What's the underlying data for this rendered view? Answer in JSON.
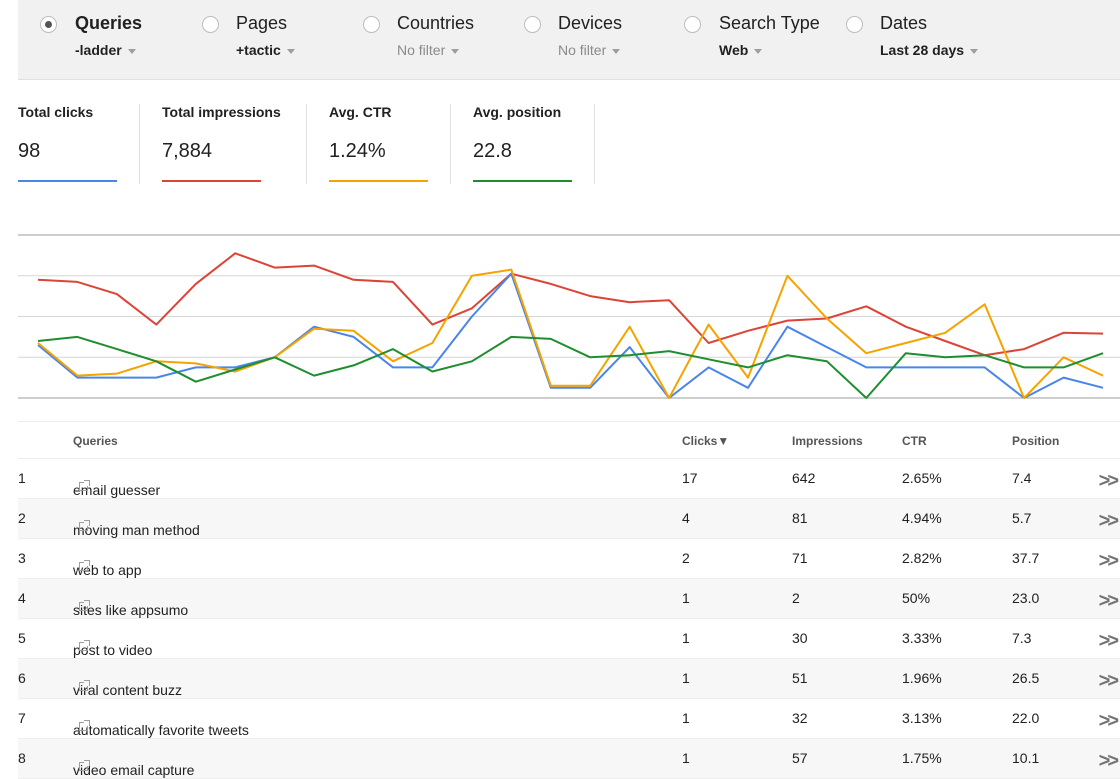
{
  "filters": [
    {
      "label": "Queries",
      "value": "-ladder",
      "selected": true,
      "muted": false
    },
    {
      "label": "Pages",
      "value": "+tactic",
      "selected": false,
      "muted": false
    },
    {
      "label": "Countries",
      "value": "No filter",
      "selected": false,
      "muted": true
    },
    {
      "label": "Devices",
      "value": "No filter",
      "selected": false,
      "muted": true
    },
    {
      "label": "Search Type",
      "value": "Web",
      "selected": false,
      "muted": false
    },
    {
      "label": "Dates",
      "value": "Last 28 days",
      "selected": false,
      "muted": false
    }
  ],
  "metrics": [
    {
      "label": "Total clicks",
      "value": "98",
      "color": "#4a86e8"
    },
    {
      "label": "Total impressions",
      "value": "7,884",
      "color": "#db4437"
    },
    {
      "label": "Avg. CTR",
      "value": "1.24%",
      "color": "#f4a300"
    },
    {
      "label": "Avg. position",
      "value": "22.8",
      "color": "#1e8e2e"
    }
  ],
  "chart_data": {
    "type": "line",
    "grid": true,
    "ylim": [
      0,
      4
    ],
    "x": [
      1,
      2,
      3,
      4,
      5,
      6,
      7,
      8,
      9,
      10,
      11,
      12,
      13,
      14,
      15,
      16,
      17,
      18,
      19,
      20,
      21,
      22,
      23,
      24,
      25,
      26,
      27,
      28
    ],
    "series": [
      {
        "name": "Total impressions",
        "color": "#db4437",
        "values": [
          2.9,
          2.85,
          2.55,
          1.8,
          2.8,
          3.55,
          3.2,
          3.25,
          2.9,
          2.85,
          1.8,
          2.2,
          3.05,
          2.8,
          2.5,
          2.35,
          2.4,
          1.35,
          1.65,
          1.9,
          1.95,
          2.25,
          1.75,
          1.4,
          1.05,
          1.2,
          1.6,
          1.58
        ]
      },
      {
        "name": "Total clicks",
        "color": "#4a86e8",
        "values": [
          1.3,
          0.5,
          0.5,
          0.5,
          0.75,
          0.75,
          1.0,
          1.75,
          1.5,
          0.75,
          0.75,
          2.0,
          3.05,
          0.25,
          0.25,
          1.25,
          0.0,
          0.75,
          0.25,
          1.75,
          1.25,
          0.75,
          0.75,
          0.75,
          0.75,
          0.0,
          0.5,
          0.25
        ]
      },
      {
        "name": "Avg. CTR",
        "color": "#f4a300",
        "values": [
          1.35,
          0.55,
          0.6,
          0.9,
          0.85,
          0.65,
          1.0,
          1.7,
          1.65,
          0.9,
          1.35,
          3.0,
          3.15,
          0.3,
          0.3,
          1.75,
          0.0,
          1.8,
          0.5,
          3.0,
          1.95,
          1.1,
          1.35,
          1.6,
          2.3,
          0.0,
          1.0,
          0.55
        ]
      },
      {
        "name": "Avg. position",
        "color": "#1e8e2e",
        "values": [
          1.4,
          1.5,
          1.2,
          0.9,
          0.4,
          0.7,
          1.0,
          0.55,
          0.8,
          1.2,
          0.65,
          0.9,
          1.5,
          1.45,
          1.0,
          1.05,
          1.15,
          0.95,
          0.75,
          1.05,
          0.9,
          0.0,
          1.1,
          1.0,
          1.05,
          0.75,
          0.75,
          1.1
        ]
      }
    ]
  },
  "table": {
    "headers": {
      "queries": "Queries",
      "clicks": "Clicks▼",
      "impressions": "Impressions",
      "ctr": "CTR",
      "position": "Position"
    },
    "rows": [
      {
        "num": "1",
        "query": "email guesser",
        "clicks": "17",
        "impressions": "642",
        "ctr": "2.65%",
        "position": "7.4"
      },
      {
        "num": "2",
        "query": "moving man method",
        "clicks": "4",
        "impressions": "81",
        "ctr": "4.94%",
        "position": "5.7"
      },
      {
        "num": "3",
        "query": "web to app",
        "clicks": "2",
        "impressions": "71",
        "ctr": "2.82%",
        "position": "37.7"
      },
      {
        "num": "4",
        "query": "sites like appsumo",
        "clicks": "1",
        "impressions": "2",
        "ctr": "50%",
        "position": "23.0"
      },
      {
        "num": "5",
        "query": "post to video",
        "clicks": "1",
        "impressions": "30",
        "ctr": "3.33%",
        "position": "7.3"
      },
      {
        "num": "6",
        "query": "viral content buzz",
        "clicks": "1",
        "impressions": "51",
        "ctr": "1.96%",
        "position": "26.5"
      },
      {
        "num": "7",
        "query": "automatically favorite tweets",
        "clicks": "1",
        "impressions": "32",
        "ctr": "3.13%",
        "position": "22.0"
      },
      {
        "num": "8",
        "query": "video email capture",
        "clicks": "1",
        "impressions": "57",
        "ctr": "1.75%",
        "position": "10.1"
      }
    ]
  }
}
